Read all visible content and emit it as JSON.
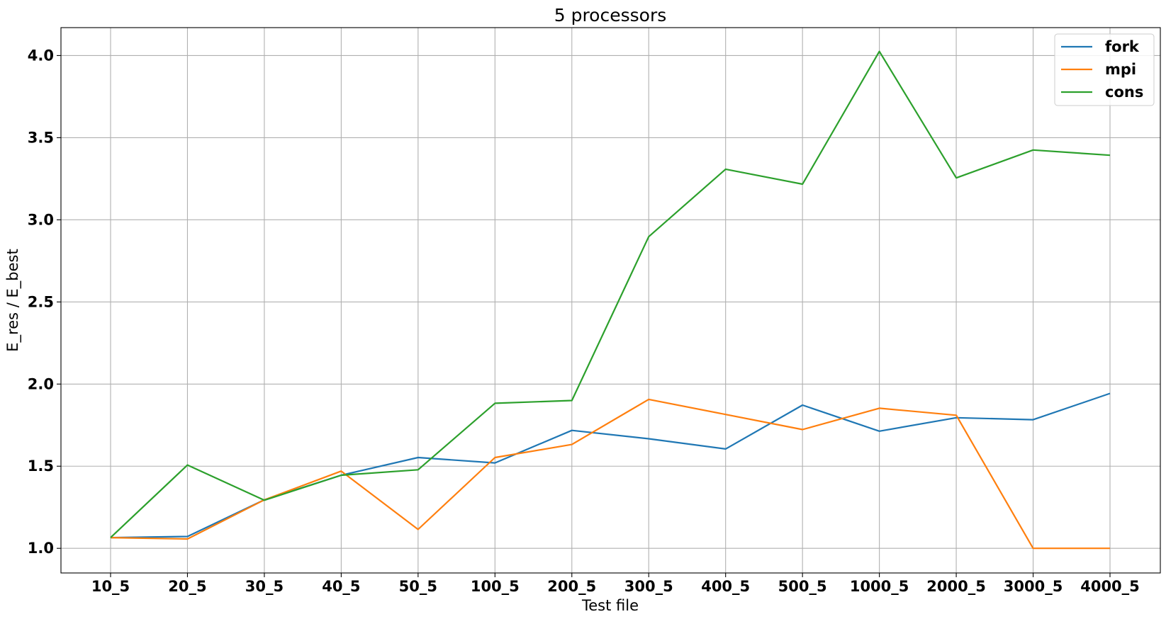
{
  "chart_data": {
    "type": "line",
    "title": "5 processors",
    "xlabel": "Test file",
    "ylabel": "E_res / E_best",
    "categories": [
      "10_5",
      "20_5",
      "30_5",
      "40_5",
      "50_5",
      "100_5",
      "200_5",
      "300_5",
      "400_5",
      "500_5",
      "1000_5",
      "2000_5",
      "3000_5",
      "4000_5"
    ],
    "ylim": [
      0.85,
      4.17
    ],
    "yticks": [
      1.0,
      1.5,
      2.0,
      2.5,
      3.0,
      3.5,
      4.0
    ],
    "ytick_labels": [
      "1.0",
      "1.5",
      "2.0",
      "2.5",
      "3.0",
      "3.5",
      "4.0"
    ],
    "grid": true,
    "legend_position": "top-right",
    "series": [
      {
        "name": "fork",
        "color": "#1f77b4",
        "values": [
          1.065,
          1.072,
          1.295,
          1.445,
          1.553,
          1.52,
          1.718,
          1.667,
          1.605,
          1.872,
          1.713,
          1.795,
          1.783,
          1.943
        ]
      },
      {
        "name": "mpi",
        "color": "#ff7f0e",
        "values": [
          1.065,
          1.057,
          1.295,
          1.47,
          1.115,
          1.553,
          1.632,
          1.907,
          1.815,
          1.723,
          1.853,
          1.81,
          1.0,
          1.0
        ]
      },
      {
        "name": "cons",
        "color": "#2ca02c",
        "values": [
          1.065,
          1.507,
          1.293,
          1.445,
          1.478,
          1.883,
          1.9,
          2.897,
          3.308,
          3.217,
          4.025,
          3.255,
          3.425,
          3.393
        ]
      }
    ]
  }
}
